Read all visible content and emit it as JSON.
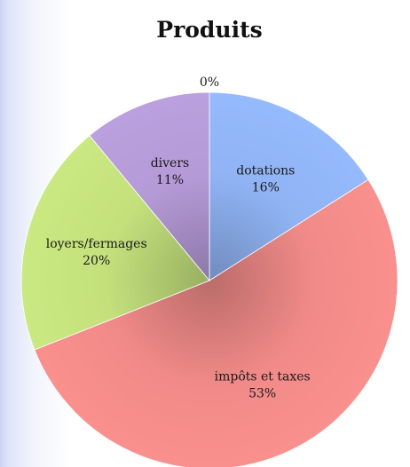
{
  "chart_data": {
    "type": "pie",
    "title": "Produits",
    "slices": [
      {
        "label": "dotations",
        "value": 16,
        "value_label": "16%",
        "color": "#8fb3f3"
      },
      {
        "label": "impôts et taxes",
        "value": 53,
        "value_label": "53%",
        "color": "#f08a88"
      },
      {
        "label": "loyers/fermages",
        "value": 20,
        "value_label": "20%",
        "color": "#c3e07c"
      },
      {
        "label": "divers",
        "value": 11,
        "value_label": "11%",
        "color": "#b49ad6"
      },
      {
        "label": "",
        "value": 0,
        "value_label": "0%",
        "color": "#cccccc"
      }
    ],
    "start_angle_deg": 0,
    "direction": "clockwise",
    "legend": "none"
  }
}
